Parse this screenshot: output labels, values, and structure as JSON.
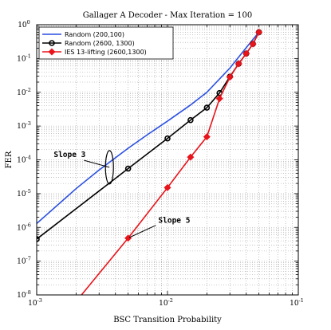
{
  "chart_data": {
    "type": "line",
    "title": "Gallager A Decoder - Max Iteration = 100",
    "xlabel": "BSC Transition Probability",
    "ylabel": "FER",
    "xscale": "log",
    "yscale": "log",
    "xlim": [
      0.001,
      0.1
    ],
    "ylim": [
      1e-08,
      1
    ],
    "x_ticks": [
      {
        "value": 0.001,
        "base": "10",
        "exp": "-3"
      },
      {
        "value": 0.01,
        "base": "10",
        "exp": "-2"
      },
      {
        "value": 0.1,
        "base": "10",
        "exp": "-1"
      }
    ],
    "y_ticks": [
      {
        "value": 1e-08,
        "base": "10",
        "exp": "-8"
      },
      {
        "value": 1e-07,
        "base": "10",
        "exp": "-7"
      },
      {
        "value": 1e-06,
        "base": "10",
        "exp": "-6"
      },
      {
        "value": 1e-05,
        "base": "10",
        "exp": "-5"
      },
      {
        "value": 0.0001,
        "base": "10",
        "exp": "-4"
      },
      {
        "value": 0.001,
        "base": "10",
        "exp": "-3"
      },
      {
        "value": 0.01,
        "base": "10",
        "exp": "-2"
      },
      {
        "value": 0.1,
        "base": "10",
        "exp": "-1"
      },
      {
        "value": 1,
        "base": "10",
        "exp": "0"
      }
    ],
    "grid": "dotted major and minor",
    "legend_position": "top-left",
    "series": [
      {
        "name": "Random (200,100)",
        "color": "#2a4fe0",
        "marker": "none",
        "x": [
          0.001,
          0.002,
          0.003,
          0.005,
          0.007,
          0.01,
          0.015,
          0.02,
          0.03,
          0.04,
          0.05
        ],
        "y": [
          1.3e-06,
          1.4e-05,
          5e-05,
          0.00022,
          0.00055,
          0.0014,
          0.0042,
          0.01,
          0.052,
          0.21,
          0.6
        ]
      },
      {
        "name": "Random (2600, 1300)",
        "color": "#000000",
        "marker": "circle",
        "x": [
          0.001,
          0.005,
          0.01,
          0.015,
          0.02,
          0.025,
          0.03,
          0.035,
          0.04,
          0.045,
          0.05
        ],
        "y": [
          4.5e-07,
          5.5e-05,
          0.00043,
          0.0015,
          0.0035,
          0.0095,
          0.029,
          0.07,
          0.14,
          0.27,
          0.6
        ]
      },
      {
        "name": "IES 13-lifting (2600,1300)",
        "color": "#e8141b",
        "marker": "diamond",
        "x": [
          0.0022,
          0.005,
          0.01,
          0.015,
          0.02,
          0.025,
          0.03,
          0.035,
          0.04,
          0.045,
          0.05
        ],
        "y": [
          1e-08,
          4.8e-07,
          1.5e-05,
          0.00012,
          0.00048,
          0.0065,
          0.028,
          0.07,
          0.14,
          0.27,
          0.6
        ],
        "marker_start_index": 1
      }
    ],
    "annotations": [
      {
        "text": "Slope 3",
        "x": 0.00135,
        "y": 0.00012,
        "arrow_to": [
          0.0036,
          6e-05
        ]
      },
      {
        "text": "Slope 5",
        "x": 0.0085,
        "y": 1.35e-06,
        "arrow_to": [
          0.0051,
          5e-07
        ]
      }
    ]
  }
}
